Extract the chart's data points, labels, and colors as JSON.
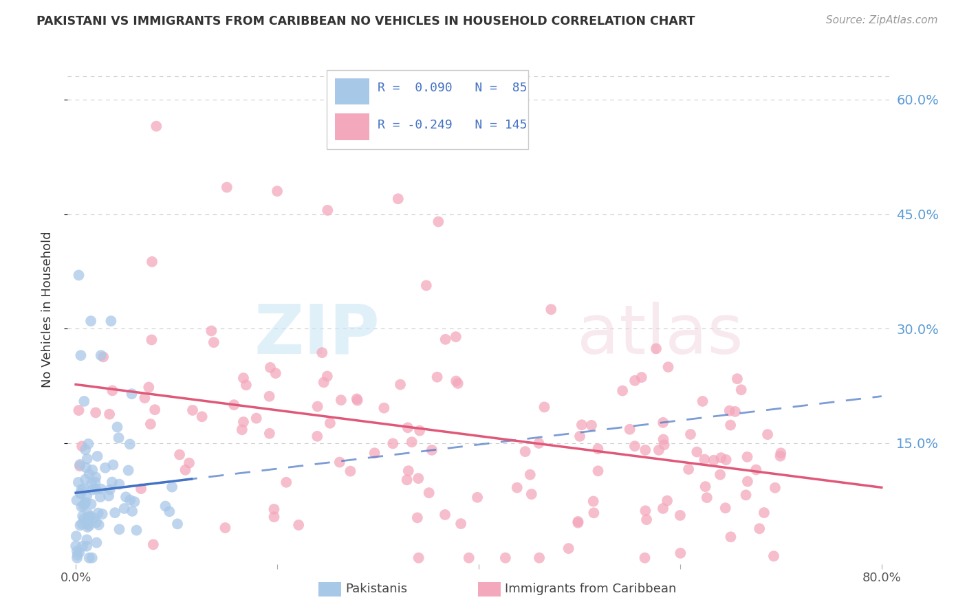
{
  "title": "PAKISTANI VS IMMIGRANTS FROM CARIBBEAN NO VEHICLES IN HOUSEHOLD CORRELATION CHART",
  "source": "Source: ZipAtlas.com",
  "ylabel": "No Vehicles in Household",
  "xlabel_pakistani": "Pakistanis",
  "xlabel_caribbean": "Immigrants from Caribbean",
  "xmin": 0.0,
  "xmax": 0.8,
  "ymin": 0.0,
  "ymax": 0.65,
  "ytick_labels_right": [
    "60.0%",
    "45.0%",
    "30.0%",
    "15.0%"
  ],
  "ytick_positions_right": [
    0.6,
    0.45,
    0.3,
    0.15
  ],
  "R_pakistani": 0.09,
  "N_pakistani": 85,
  "R_caribbean": -0.249,
  "N_caribbean": 145,
  "color_pakistani": "#a8c8e8",
  "color_caribbean": "#f4a8bc",
  "line_color_pakistani": "#4472c4",
  "line_color_caribbean": "#e05878",
  "background_color": "#ffffff",
  "grid_color": "#cccccc",
  "seed": 7
}
